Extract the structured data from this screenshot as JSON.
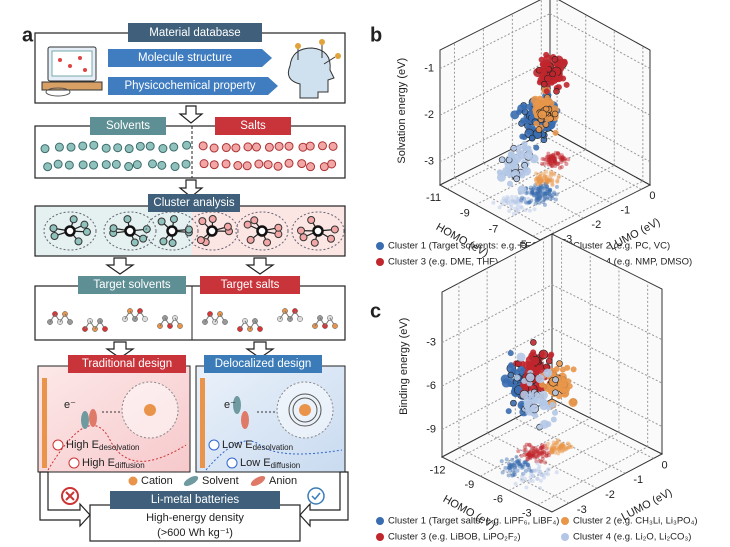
{
  "panel_a": {
    "label": "a",
    "database": "Material database",
    "inputs": [
      "Molecule structure",
      "Physicochemical property"
    ],
    "solvents": "Solvents",
    "salts": "Salts",
    "cluster": "Cluster analysis",
    "target_solvents": "Target solvents",
    "target_salts": "Target salts",
    "traditional": {
      "title": "Traditional design",
      "electron": "e⁻",
      "desolvation": {
        "main": "High E",
        "sub": "desolvation"
      },
      "diffusion": {
        "main": "High E",
        "sub": "diffusion"
      }
    },
    "delocalized": {
      "title": "Delocalized design",
      "electron": "e⁻",
      "desolvation": {
        "main": "Low E",
        "sub": "desolvation"
      },
      "diffusion": {
        "main": "Low E",
        "sub": "diffusion"
      }
    },
    "legend": [
      "Cation",
      "Solvent",
      "Anion"
    ],
    "battery": {
      "title": "Li-metal batteries",
      "line1": "High-energy density",
      "line2": "(>600 Wh kg⁻¹)"
    }
  },
  "panel_b": {
    "label": "b",
    "z_label": "Solvation energy (eV)",
    "homo_label": "HOMO (eV)",
    "lumo_label": "LUMO (eV)",
    "zlim": [
      -3.5,
      -0.6
    ],
    "zticks": [
      -3,
      -2,
      -1
    ],
    "homo_lim": [
      -11.5,
      -4.5
    ],
    "homo_ticks": [
      -11,
      -9,
      -7,
      -5
    ],
    "lumo_lim": [
      -3.5,
      0.3
    ],
    "lumo_ticks": [
      -3,
      -2,
      -1,
      0
    ],
    "legend": [
      {
        "name": "Cluster 1 (Target solvents: e.g. FEC, FEMC)",
        "color": "#3a6db0"
      },
      {
        "name": "Cluster 2 (e.g. PC, VC)",
        "color": "#e8964a"
      },
      {
        "name": "Cluster 3 (e.g. DME, THF)",
        "color": "#c0262c"
      },
      {
        "name": "Cluster 4 (e.g. NMP, DMSO)",
        "color": "#b3c6e6"
      }
    ]
  },
  "panel_c": {
    "label": "c",
    "z_label": "Binding energy (eV)",
    "homo_label": "HOMO (eV)",
    "lumo_label": "LUMO (eV)",
    "zlim": [
      -10.9,
      0.5
    ],
    "zticks": [
      -9,
      -6,
      -3
    ],
    "homo_lim": [
      -13,
      -1.5
    ],
    "homo_ticks": [
      -12,
      -9,
      -6,
      -3
    ],
    "lumo_lim": [
      -3.6,
      0.3
    ],
    "lumo_ticks": [
      -3,
      -2,
      -1,
      0
    ],
    "legend": [
      {
        "name": "Cluster 1 (Target salts: e.g. LiPF₆, LiBF₄)",
        "color": "#3a6db0"
      },
      {
        "name": "Cluster 2 (e.g. CH₃Li, Li₃PO₄)",
        "color": "#e8964a"
      },
      {
        "name": "Cluster 3 (e.g. LiBOB, LiPO₂F₂)",
        "color": "#c0262c"
      },
      {
        "name": "Cluster 4 (e.g. Li₂O, Li₂CO₃)",
        "color": "#b3c6e6"
      }
    ]
  }
}
